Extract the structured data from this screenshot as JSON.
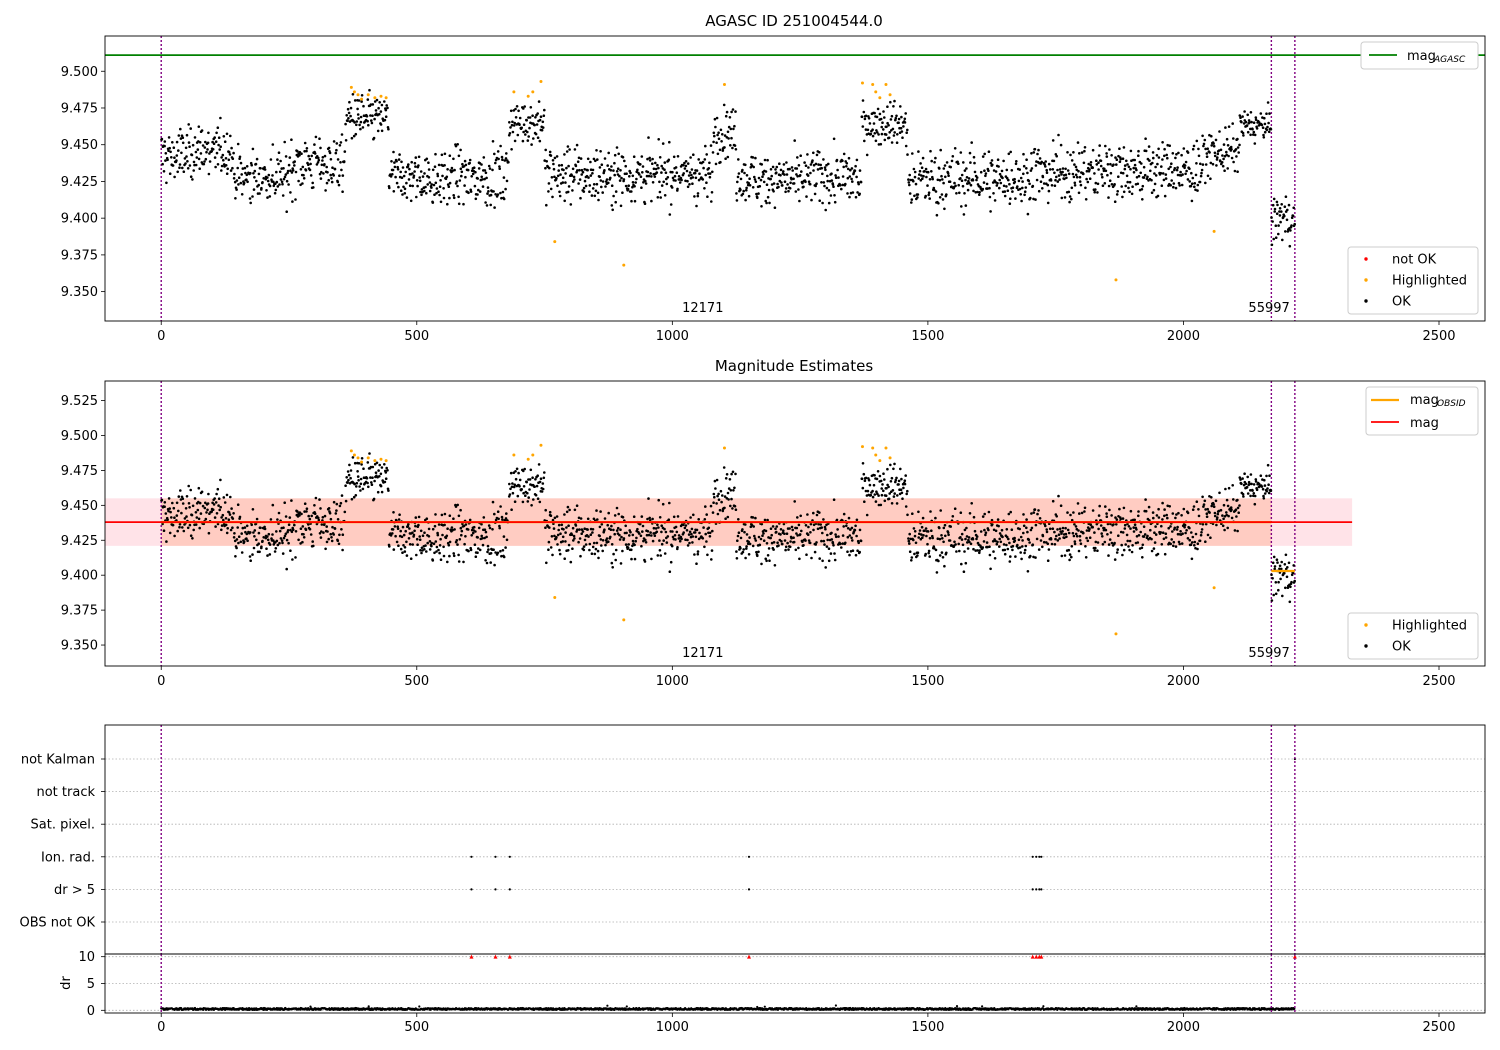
{
  "figure": {
    "title": "AGASC ID 251004544.0",
    "panel2_title": "Magnitude Estimates"
  },
  "colors": {
    "ok": "#000000",
    "highlighted": "#ffa500",
    "not_ok": "#ff0000",
    "mag_agasc": "#008000",
    "mag": "#ff0000",
    "mag_obsid": "#ffa500",
    "obs_line": "#800080",
    "band_outer": "#ffc0cb",
    "band_inner": "#ffa07a"
  },
  "chart_data": [
    {
      "type": "scatter",
      "title": "AGASC ID 251004544.0",
      "xlim": [
        -110,
        2590
      ],
      "ylim": [
        9.33,
        9.524
      ],
      "x_ticks": [
        "0",
        "500",
        "1000",
        "1500",
        "2000",
        "2500"
      ],
      "y_ticks": [
        "9.350",
        "9.375",
        "9.400",
        "9.425",
        "9.450",
        "9.475",
        "9.500"
      ],
      "mag_agasc": 9.511,
      "legend_top": [
        {
          "label": "mag",
          "sub": "AGASC",
          "color": "#008000"
        }
      ],
      "legend_bottom": [
        {
          "label": "not OK",
          "color": "#ff0000"
        },
        {
          "label": "Highlighted",
          "color": "#ffa500"
        },
        {
          "label": "OK",
          "color": "#000000"
        }
      ],
      "obsid_boundaries": [
        0,
        2172,
        2218
      ],
      "obsid_labels": [
        {
          "text": "12171",
          "x": 1087
        },
        {
          "text": "55997",
          "x": 2195
        }
      ],
      "segments": [
        {
          "x0": 0,
          "x1": 60,
          "level": 9.442,
          "noise": 0.012
        },
        {
          "x0": 60,
          "x1": 140,
          "level": 9.446,
          "noise": 0.011
        },
        {
          "x0": 140,
          "x1": 250,
          "level": 9.428,
          "noise": 0.01
        },
        {
          "x0": 250,
          "x1": 360,
          "level": 9.437,
          "noise": 0.011
        },
        {
          "x0": 360,
          "x1": 445,
          "level": 9.468,
          "noise": 0.009
        },
        {
          "x0": 445,
          "x1": 680,
          "level": 9.428,
          "noise": 0.011
        },
        {
          "x0": 680,
          "x1": 750,
          "level": 9.465,
          "noise": 0.008
        },
        {
          "x0": 750,
          "x1": 1080,
          "level": 9.43,
          "noise": 0.011
        },
        {
          "x0": 1080,
          "x1": 1125,
          "level": 9.458,
          "noise": 0.01
        },
        {
          "x0": 1125,
          "x1": 1370,
          "level": 9.427,
          "noise": 0.01
        },
        {
          "x0": 1370,
          "x1": 1460,
          "level": 9.465,
          "noise": 0.009
        },
        {
          "x0": 1460,
          "x1": 1700,
          "level": 9.427,
          "noise": 0.011
        },
        {
          "x0": 1700,
          "x1": 2040,
          "level": 9.432,
          "noise": 0.011
        },
        {
          "x0": 2040,
          "x1": 2110,
          "level": 9.445,
          "noise": 0.008
        },
        {
          "x0": 2110,
          "x1": 2172,
          "level": 9.463,
          "noise": 0.006
        },
        {
          "x0": 2172,
          "x1": 2218,
          "level": 9.4,
          "noise": 0.01
        }
      ],
      "highlighted_points": [
        {
          "x": 372,
          "y": 9.489
        },
        {
          "x": 378,
          "y": 9.486
        },
        {
          "x": 385,
          "y": 9.484
        },
        {
          "x": 392,
          "y": 9.481
        },
        {
          "x": 405,
          "y": 9.484
        },
        {
          "x": 418,
          "y": 9.482
        },
        {
          "x": 430,
          "y": 9.483
        },
        {
          "x": 440,
          "y": 9.482
        },
        {
          "x": 690,
          "y": 9.486
        },
        {
          "x": 718,
          "y": 9.483
        },
        {
          "x": 727,
          "y": 9.486
        },
        {
          "x": 743,
          "y": 9.493
        },
        {
          "x": 1102,
          "y": 9.491
        },
        {
          "x": 1372,
          "y": 9.492
        },
        {
          "x": 1392,
          "y": 9.491
        },
        {
          "x": 1398,
          "y": 9.486
        },
        {
          "x": 1406,
          "y": 9.482
        },
        {
          "x": 1418,
          "y": 9.491
        },
        {
          "x": 1426,
          "y": 9.484
        },
        {
          "x": 770,
          "y": 9.384
        },
        {
          "x": 905,
          "y": 9.368
        },
        {
          "x": 1868,
          "y": 9.358
        },
        {
          "x": 2060,
          "y": 9.391
        }
      ]
    },
    {
      "type": "scatter",
      "title": "Magnitude Estimates",
      "xlim": [
        -110,
        2590
      ],
      "ylim": [
        9.335,
        9.539
      ],
      "x_ticks": [
        "0",
        "500",
        "1000",
        "1500",
        "2000",
        "2500"
      ],
      "y_ticks": [
        "9.350",
        "9.375",
        "9.400",
        "9.425",
        "9.450",
        "9.475",
        "9.500",
        "9.525"
      ],
      "mag": 9.438,
      "mag_band": [
        9.421,
        9.455
      ],
      "mag_band_xrange": [
        -110,
        2330
      ],
      "mag_obsid": [
        {
          "x0": 0,
          "x1": 2172,
          "value": 9.438
        },
        {
          "x0": 2172,
          "x1": 2218,
          "value": 9.403
        }
      ],
      "legend_top": [
        {
          "label": "mag",
          "sub": "OBSID",
          "color": "#ffa500"
        },
        {
          "label": "mag",
          "color": "#ff0000"
        }
      ],
      "legend_bottom": [
        {
          "label": "Highlighted",
          "color": "#ffa500"
        },
        {
          "label": "OK",
          "color": "#000000"
        }
      ],
      "obsid_boundaries": [
        0,
        2172,
        2218
      ],
      "obsid_labels": [
        {
          "text": "12171",
          "x": 1087
        },
        {
          "text": "55997",
          "x": 2195
        }
      ]
    },
    {
      "type": "scatter",
      "title": "",
      "xlim": [
        -110,
        2590
      ],
      "x_ticks": [
        "0",
        "500",
        "1000",
        "1500",
        "2000",
        "2500"
      ],
      "flag_rows": [
        "not Kalman",
        "not track",
        "Sat. pixel.",
        "Ion. rad.",
        "dr > 5",
        "OBS not OK"
      ],
      "flags": {
        "Ion. rad.": [
          607,
          654,
          682,
          1150,
          1705,
          1712,
          1718,
          1722
        ],
        "dr > 5": [
          607,
          654,
          682,
          1150,
          1705,
          1712,
          1718,
          1722
        ],
        "not Kalman": [
          2218
        ]
      },
      "dr_ylabel": "dr",
      "dr_ticks": [
        "0",
        "5",
        "10"
      ],
      "dr_ylim": [
        -0.5,
        10.5
      ],
      "dr_level": 0.25,
      "dr_clipped_points": [
        607,
        654,
        682,
        1150,
        1705,
        1712,
        1718,
        1722,
        2218
      ],
      "obsid_boundaries": [
        0,
        2172,
        2218
      ]
    }
  ]
}
